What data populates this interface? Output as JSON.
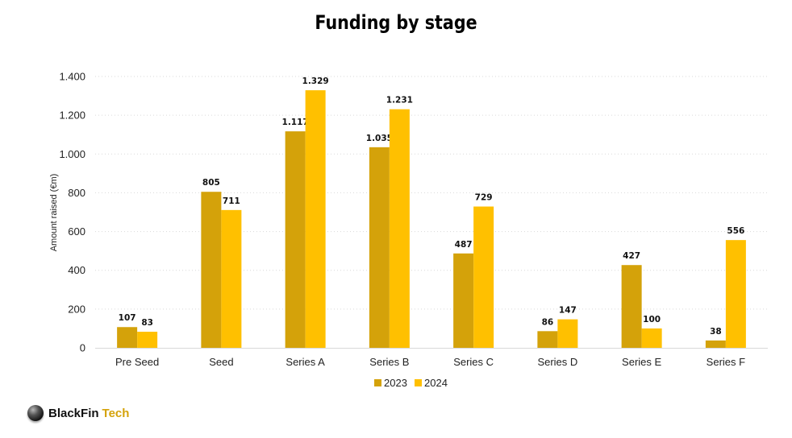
{
  "chart_data": {
    "type": "bar",
    "title": "Funding by stage",
    "xlabel": "",
    "ylabel": "Amount raised (€m)",
    "categories": [
      "Pre Seed",
      "Seed",
      "Series A",
      "Series B",
      "Series C",
      "Series D",
      "Series E",
      "Series F"
    ],
    "series": [
      {
        "name": "2023",
        "values": [
          107,
          805,
          1117,
          1035,
          487,
          86,
          427,
          38
        ],
        "labels": [
          "107",
          "805",
          "1.117",
          "1.035",
          "487",
          "86",
          "427",
          "38"
        ],
        "color": "#D4A20A"
      },
      {
        "name": "2024",
        "values": [
          83,
          711,
          1329,
          1231,
          729,
          147,
          100,
          556
        ],
        "labels": [
          "83",
          "711",
          "1.329",
          "1.231",
          "729",
          "147",
          "100",
          "556"
        ],
        "color": "#FFC000"
      }
    ],
    "ylim": [
      0,
      1400
    ],
    "yticks": [
      0,
      200,
      400,
      600,
      800,
      1000,
      1200,
      1400
    ],
    "ytick_labels": [
      "0",
      "200",
      "400",
      "600",
      "800",
      "1.000",
      "1.200",
      "1.400"
    ],
    "grid": "horizontal dotted",
    "legend_position": "bottom"
  },
  "brand": {
    "name": "BlackFin",
    "accent": "Tech",
    "icon": "black-sphere-icon"
  }
}
